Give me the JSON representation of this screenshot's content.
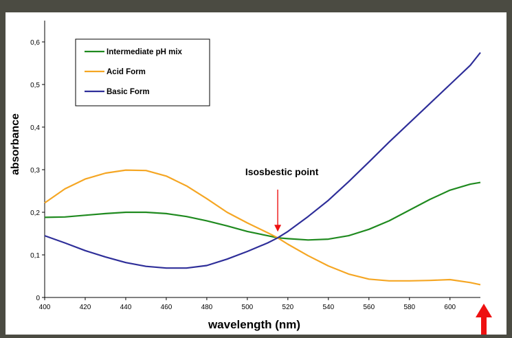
{
  "chart_data": {
    "type": "line",
    "xlabel": "wavelength (nm)",
    "ylabel": "absorbance",
    "xlim": [
      400,
      615
    ],
    "ylim": [
      0,
      0.65
    ],
    "x_ticks": [
      400,
      420,
      440,
      460,
      480,
      500,
      520,
      540,
      560,
      580,
      600
    ],
    "y_ticks": [
      0,
      0.1,
      0.2,
      0.3,
      0.4,
      0.5,
      0.6
    ],
    "y_tick_labels": [
      "0",
      "0,1",
      "0,2",
      "0,3",
      "0,4",
      "0,5",
      "0,6"
    ],
    "grid": false,
    "legend_position": "top-left",
    "series": [
      {
        "name": "Intermediate pH mix",
        "color": "#1f8a1f",
        "x": [
          400,
          410,
          420,
          430,
          440,
          450,
          460,
          470,
          480,
          490,
          500,
          510,
          515,
          520,
          530,
          540,
          550,
          560,
          570,
          580,
          590,
          600,
          610,
          615
        ],
        "y": [
          0.188,
          0.189,
          0.193,
          0.197,
          0.2,
          0.2,
          0.197,
          0.19,
          0.18,
          0.168,
          0.155,
          0.145,
          0.14,
          0.138,
          0.135,
          0.137,
          0.145,
          0.16,
          0.18,
          0.205,
          0.23,
          0.252,
          0.266,
          0.27
        ]
      },
      {
        "name": "Acid Form",
        "color": "#f5a623",
        "x": [
          400,
          410,
          420,
          430,
          440,
          450,
          460,
          470,
          480,
          490,
          500,
          510,
          515,
          520,
          530,
          540,
          550,
          560,
          570,
          580,
          590,
          600,
          610,
          615
        ],
        "y": [
          0.222,
          0.255,
          0.278,
          0.292,
          0.299,
          0.298,
          0.285,
          0.262,
          0.232,
          0.2,
          0.175,
          0.152,
          0.14,
          0.125,
          0.098,
          0.074,
          0.055,
          0.043,
          0.039,
          0.039,
          0.04,
          0.042,
          0.035,
          0.03
        ]
      },
      {
        "name": "Basic Form",
        "color": "#2e2e99",
        "x": [
          400,
          410,
          420,
          430,
          440,
          450,
          460,
          470,
          480,
          490,
          500,
          510,
          515,
          520,
          530,
          540,
          550,
          560,
          570,
          580,
          590,
          600,
          610,
          615
        ],
        "y": [
          0.145,
          0.128,
          0.11,
          0.095,
          0.082,
          0.073,
          0.069,
          0.069,
          0.075,
          0.09,
          0.108,
          0.128,
          0.14,
          0.155,
          0.19,
          0.228,
          0.272,
          0.318,
          0.365,
          0.41,
          0.455,
          0.5,
          0.545,
          0.575
        ]
      }
    ],
    "annotations": [
      {
        "text": "Isosbestic point",
        "x": 515,
        "y": 0.14,
        "color": "#ee1111"
      }
    ]
  },
  "colors": {
    "background": "#4b4b42",
    "plot_area": "#ffffff",
    "annotation_arrow": "#ee1111",
    "corner_arrow": "#ee1111"
  },
  "icons": {
    "corner_arrow": "red-up-arrow-icon"
  }
}
